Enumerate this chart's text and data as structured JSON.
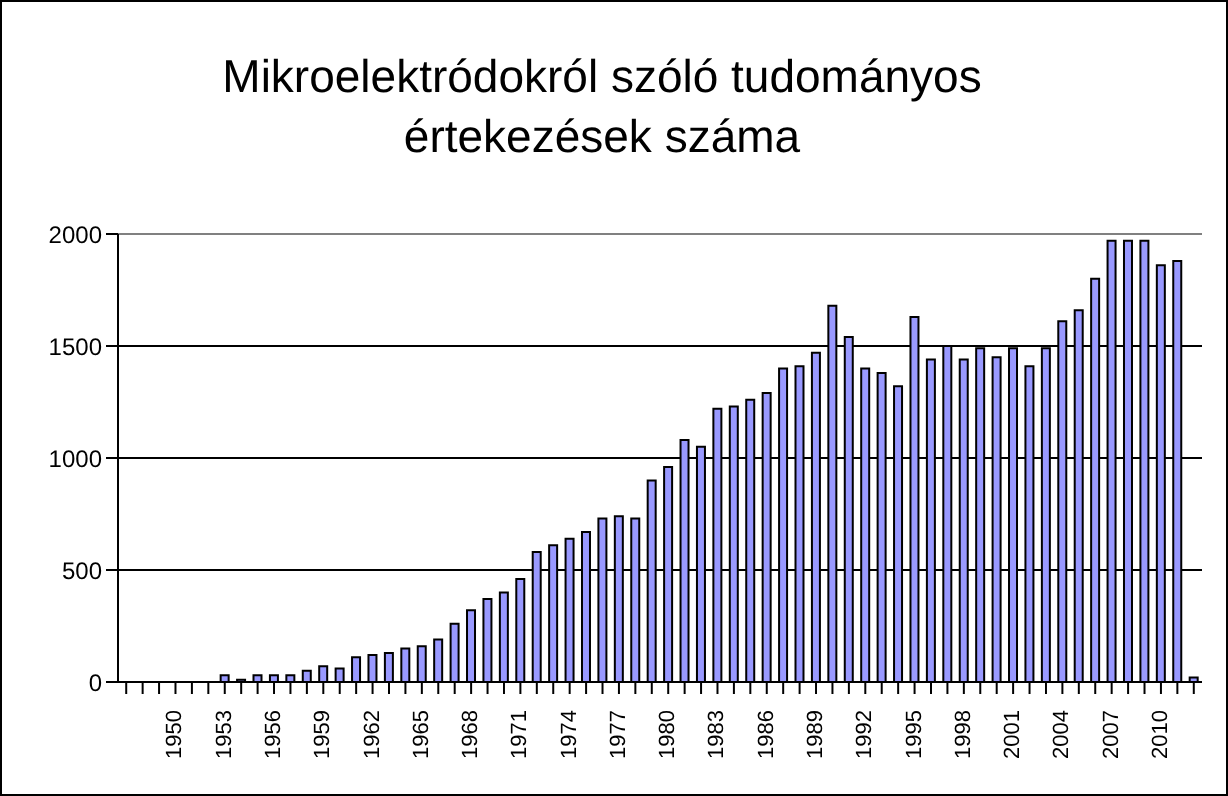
{
  "chart_data": {
    "type": "bar",
    "title": "Mikroelektródokról szóló tudományos értekezések száma",
    "categories": [
      null,
      null,
      null,
      "1950",
      null,
      null,
      "1953",
      null,
      null,
      "1956",
      null,
      null,
      "1959",
      null,
      null,
      "1962",
      null,
      null,
      "1965",
      null,
      null,
      "1968",
      null,
      null,
      "1971",
      null,
      null,
      "1974",
      null,
      null,
      "1977",
      null,
      null,
      "1980",
      null,
      null,
      "1983",
      null,
      null,
      "1986",
      null,
      null,
      "1989",
      null,
      null,
      "1992",
      null,
      null,
      "1995",
      null,
      null,
      "1998",
      null,
      null,
      "2001",
      null,
      null,
      "2004",
      null,
      null,
      "2007",
      null,
      null,
      "2010",
      null,
      null
    ],
    "values": [
      0,
      0,
      0,
      0,
      0,
      0,
      30,
      10,
      30,
      30,
      30,
      50,
      70,
      60,
      110,
      120,
      130,
      150,
      160,
      190,
      260,
      320,
      370,
      400,
      460,
      580,
      610,
      640,
      670,
      730,
      740,
      730,
      900,
      960,
      1080,
      1050,
      1220,
      1230,
      1260,
      1290,
      1400,
      1410,
      1470,
      1680,
      1540,
      1400,
      1380,
      1320,
      1630,
      1440,
      1500,
      1440,
      1490,
      1450,
      1490,
      1410,
      1490,
      1610,
      1660,
      1800,
      1970,
      1970,
      1970,
      1860,
      1880,
      20
    ],
    "color": "#9999ff",
    "ylim": [
      0,
      2000
    ],
    "yticks": [
      0,
      500,
      1000,
      1500,
      2000
    ],
    "grid": "y"
  }
}
